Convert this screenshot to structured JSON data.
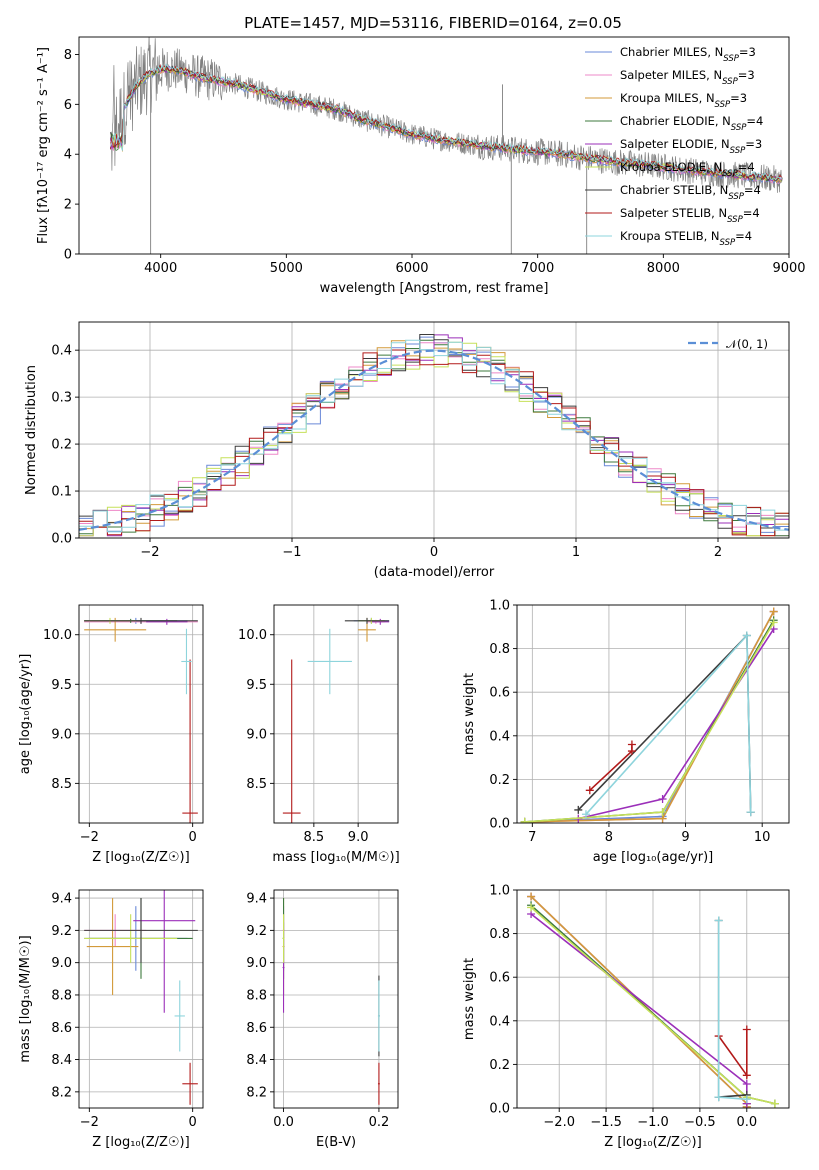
{
  "colors": {
    "Chabrier MILES": "#6a89d8",
    "Salpeter MILES": "#ee88c8",
    "Kroupa MILES": "#d39a3a",
    "Chabrier ELODIE": "#3e7a3e",
    "Salpeter ELODIE": "#9b2fb9",
    "Kroupa ELODIE": "#c6e05a",
    "Chabrier STELIB": "#3c3c3c",
    "Salpeter STELIB": "#b21a1a",
    "Kroupa STELIB": "#8ed4dc"
  },
  "chart_data": [
    {
      "id": "spectrum",
      "type": "line",
      "title": "PLATE=1457, MJD=53116, FIBERID=0164, z=0.05",
      "xlabel": "wavelength [Angstrom, rest frame]",
      "ylabel": "Flux [fλ10⁻¹⁷ erg cm⁻² s⁻¹ A⁻¹]",
      "xlim": [
        3350,
        9000
      ],
      "ylim": [
        0,
        8.7
      ],
      "xticks": [
        4000,
        5000,
        6000,
        7000,
        8000,
        9000
      ],
      "yticks": [
        0,
        2,
        4,
        6,
        8
      ],
      "grid": false,
      "legend_position": "top-right",
      "legend": [
        {
          "name": "Chabrier MILES",
          "nssp": "3"
        },
        {
          "name": "Salpeter MILES",
          "nssp": "3"
        },
        {
          "name": "Kroupa MILES",
          "nssp": "3"
        },
        {
          "name": "Chabrier ELODIE",
          "nssp": "4"
        },
        {
          "name": "Salpeter ELODIE",
          "nssp": "3"
        },
        {
          "name": "Kroupa ELODIE",
          "nssp": "4"
        },
        {
          "name": "Chabrier STELIB",
          "nssp": "4"
        },
        {
          "name": "Salpeter STELIB",
          "nssp": "4"
        },
        {
          "name": "Kroupa STELIB",
          "nssp": "4"
        }
      ],
      "data_continuum": {
        "x": [
          3600,
          3700,
          3800,
          3900,
          4000,
          4100,
          4200,
          4300,
          4400,
          4600,
          4800,
          5000,
          5200,
          5400,
          5600,
          5800,
          6000,
          6200,
          6400,
          6600,
          6800,
          7000,
          7200,
          7400,
          7600,
          7800,
          8000,
          8200,
          8400,
          8600,
          8800,
          9000
        ],
        "y": [
          4.2,
          5.8,
          6.7,
          7.2,
          7.4,
          7.4,
          7.3,
          7.1,
          7.0,
          6.8,
          6.5,
          6.2,
          6.0,
          5.8,
          5.4,
          5.1,
          4.8,
          4.6,
          4.45,
          4.3,
          4.2,
          4.1,
          4.0,
          3.85,
          3.7,
          3.6,
          3.5,
          3.35,
          3.25,
          3.15,
          3.05,
          2.95
        ]
      }
    },
    {
      "id": "residual-histogram",
      "type": "line",
      "xlabel": "(data-model)/error",
      "ylabel": "Normed distribution",
      "xlim": [
        -2.5,
        2.5
      ],
      "ylim": [
        0,
        0.46
      ],
      "xticks": [
        -2,
        -1,
        0,
        1,
        2
      ],
      "yticks": [
        0.0,
        0.1,
        0.2,
        0.3,
        0.4
      ],
      "grid": true,
      "legend_position": "top-right",
      "reference_curve": "𝒩(0, 1)",
      "bin_width": 0.1
    },
    {
      "id": "age-vs-Z",
      "type": "scatter",
      "xlabel": "Z [log₁₀(Z/Z☉)]",
      "ylabel": "age  [log₁₀(age/yr)]",
      "xlim": [
        -2.2,
        0.2
      ],
      "ylim": [
        8.1,
        10.3
      ],
      "xticks": [
        -2,
        0
      ],
      "yticks": [
        8.5,
        9.0,
        9.5,
        10.0
      ],
      "grid": true,
      "errorbars": [
        {
          "series": "Chabrier MILES",
          "x": -1.1,
          "y": 10.14,
          "xerr": 1.0,
          "yerr": 0.03
        },
        {
          "series": "Salpeter MILES",
          "x": -1.0,
          "y": 10.13,
          "xerr": 1.1,
          "yerr": 0.02
        },
        {
          "series": "Kroupa MILES",
          "x": -1.5,
          "y": 10.05,
          "xerr": 0.6,
          "yerr": 0.12
        },
        {
          "series": "Chabrier ELODIE",
          "x": -1.2,
          "y": 10.14,
          "xerr": 0.9,
          "yerr": 0.02
        },
        {
          "series": "Salpeter ELODIE",
          "x": -0.5,
          "y": 10.13,
          "xerr": 0.4,
          "yerr": 0.03
        },
        {
          "series": "Kroupa ELODIE",
          "x": -1.6,
          "y": 10.14,
          "xerr": 0.5,
          "yerr": 0.03
        },
        {
          "series": "Chabrier STELIB",
          "x": -1.0,
          "y": 10.14,
          "xerr": 1.1,
          "yerr": 0.03
        },
        {
          "series": "Salpeter STELIB",
          "x": -0.05,
          "y": 8.2,
          "xerr": 0.15,
          "yerr": 1.55
        },
        {
          "series": "Kroupa STELIB",
          "x": -0.12,
          "y": 9.73,
          "xerr": 0.1,
          "yerr": 0.33
        }
      ]
    },
    {
      "id": "age-vs-mass",
      "type": "scatter",
      "xlabel": "mass [log₁₀(M/M☉)]",
      "ylabel": "",
      "xlim": [
        8.05,
        9.45
      ],
      "ylim": [
        8.1,
        10.3
      ],
      "xticks": [
        8.5,
        9.0
      ],
      "yticks": [
        8.5,
        9.0,
        9.5,
        10.0
      ],
      "grid": true,
      "errorbars": [
        {
          "series": "Chabrier MILES",
          "x": 9.15,
          "y": 10.14,
          "xerr": 0.2,
          "yerr": 0.03
        },
        {
          "series": "Salpeter MILES",
          "x": 9.2,
          "y": 10.13,
          "xerr": 0.1,
          "yerr": 0.02
        },
        {
          "series": "Kroupa MILES",
          "x": 9.1,
          "y": 10.05,
          "xerr": 0.1,
          "yerr": 0.12
        },
        {
          "series": "Chabrier ELODIE",
          "x": 9.15,
          "y": 10.14,
          "xerr": 0.15,
          "yerr": 0.02
        },
        {
          "series": "Salpeter ELODIE",
          "x": 9.25,
          "y": 10.13,
          "xerr": 0.1,
          "yerr": 0.03
        },
        {
          "series": "Kroupa ELODIE",
          "x": 9.15,
          "y": 10.14,
          "xerr": 0.15,
          "yerr": 0.03
        },
        {
          "series": "Chabrier STELIB",
          "x": 9.1,
          "y": 10.14,
          "xerr": 0.25,
          "yerr": 0.03
        },
        {
          "series": "Salpeter STELIB",
          "x": 8.25,
          "y": 8.2,
          "xerr": 0.1,
          "yerr": 1.55
        },
        {
          "series": "Kroupa STELIB",
          "x": 8.68,
          "y": 9.73,
          "xerr": 0.25,
          "yerr": 0.33
        }
      ]
    },
    {
      "id": "weight-vs-age",
      "type": "line",
      "xlabel": "age  [log₁₀(age/yr)]",
      "ylabel": "mass weight",
      "xlim": [
        6.8,
        10.35
      ],
      "ylim": [
        0,
        1.0
      ],
      "xticks": [
        7,
        8,
        9,
        10
      ],
      "yticks": [
        0.0,
        0.2,
        0.4,
        0.6,
        0.8,
        1.0
      ],
      "grid": true,
      "series": [
        {
          "name": "Chabrier MILES",
          "x": [
            6.9,
            8.7,
            10.15
          ],
          "y": [
            0.005,
            0.03,
            0.97
          ]
        },
        {
          "name": "Salpeter MILES",
          "x": [
            6.9,
            8.7,
            10.15
          ],
          "y": [
            0.005,
            0.02,
            0.97
          ]
        },
        {
          "name": "Kroupa MILES",
          "x": [
            6.9,
            8.7,
            10.15
          ],
          "y": [
            0.005,
            0.02,
            0.97
          ]
        },
        {
          "name": "Chabrier ELODIE",
          "x": [
            6.9,
            8.7,
            10.15
          ],
          "y": [
            0.005,
            0.05,
            0.93
          ]
        },
        {
          "name": "Salpeter ELODIE",
          "x": [
            7.6,
            8.7,
            10.15
          ],
          "y": [
            0.02,
            0.11,
            0.89
          ]
        },
        {
          "name": "Kroupa ELODIE",
          "x": [
            6.9,
            8.7,
            10.15
          ],
          "y": [
            0.005,
            0.05,
            0.92
          ]
        },
        {
          "name": "Chabrier STELIB",
          "x": [
            7.6,
            9.8,
            9.85
          ],
          "y": [
            0.06,
            0.86,
            0.05
          ]
        },
        {
          "name": "Salpeter STELIB",
          "x": [
            7.75,
            8.3,
            8.3
          ],
          "y": [
            0.15,
            0.33,
            0.36
          ]
        },
        {
          "name": "Kroupa STELIB",
          "x": [
            7.7,
            9.8,
            9.85
          ],
          "y": [
            0.04,
            0.86,
            0.05
          ]
        }
      ]
    },
    {
      "id": "mass-vs-Z",
      "type": "scatter",
      "xlabel": "Z [log₁₀(Z/Z☉)]",
      "ylabel": "mass [log₁₀(M/M☉)]",
      "xlim": [
        -2.2,
        0.2
      ],
      "ylim": [
        8.1,
        9.45
      ],
      "xticks": [
        -2,
        0
      ],
      "yticks": [
        8.2,
        8.4,
        8.6,
        8.8,
        9.0,
        9.2,
        9.4
      ],
      "grid": true,
      "errorbars": [
        {
          "series": "Chabrier MILES",
          "x": -1.1,
          "y": 9.15,
          "xerr": 1.0,
          "yerr": 0.2
        },
        {
          "series": "Salpeter MILES",
          "x": -1.5,
          "y": 9.2,
          "xerr": 0.6,
          "yerr": 0.1
        },
        {
          "series": "Kroupa MILES",
          "x": -1.55,
          "y": 9.1,
          "xerr": 0.5,
          "yerr": 0.3
        },
        {
          "series": "Chabrier ELODIE",
          "x": -1.0,
          "y": 9.15,
          "xerr": 1.0,
          "yerr": 0.25
        },
        {
          "series": "Salpeter ELODIE",
          "x": -0.55,
          "y": 9.26,
          "xerr": 0.6,
          "yerr": 0.57
        },
        {
          "series": "Kroupa ELODIE",
          "x": -1.2,
          "y": 9.15,
          "xerr": 0.9,
          "yerr": 0.15
        },
        {
          "series": "Chabrier STELIB",
          "x": -1.0,
          "y": 9.2,
          "xerr": 1.1,
          "yerr": 0.2
        },
        {
          "series": "Salpeter STELIB",
          "x": -0.05,
          "y": 8.25,
          "xerr": 0.15,
          "yerr": 0.13
        },
        {
          "series": "Kroupa STELIB",
          "x": -0.25,
          "y": 8.67,
          "xerr": 0.1,
          "yerr": 0.22
        }
      ]
    },
    {
      "id": "mass-vs-ebv",
      "type": "scatter",
      "xlabel": "E(B-V)",
      "ylabel": "",
      "xlim": [
        -0.02,
        0.24
      ],
      "ylim": [
        8.1,
        9.45
      ],
      "xticks": [
        0.0,
        0.2
      ],
      "yticks": [
        8.2,
        8.4,
        8.6,
        8.8,
        9.0,
        9.2,
        9.4
      ],
      "grid": true,
      "errorbars": [
        {
          "series": "Chabrier MILES",
          "x": 0.0,
          "y": 9.15,
          "xerr": 0.002,
          "yerr": 0.2
        },
        {
          "series": "Salpeter MILES",
          "x": 0.0,
          "y": 9.2,
          "xerr": 0.002,
          "yerr": 0.1
        },
        {
          "series": "Kroupa MILES",
          "x": 0.0,
          "y": 9.1,
          "xerr": 0.002,
          "yerr": 0.3
        },
        {
          "series": "Chabrier ELODIE",
          "x": 0.0,
          "y": 9.15,
          "xerr": 0.002,
          "yerr": 0.25
        },
        {
          "series": "Salpeter ELODIE",
          "x": 0.0,
          "y": 8.97,
          "xerr": 0.002,
          "yerr": 0.28
        },
        {
          "series": "Kroupa ELODIE",
          "x": 0.0,
          "y": 9.15,
          "xerr": 0.002,
          "yerr": 0.15
        },
        {
          "series": "Chabrier STELIB",
          "x": 0.2,
          "y": 8.67,
          "xerr": 0.002,
          "yerr": 0.25
        },
        {
          "series": "Salpeter STELIB",
          "x": 0.2,
          "y": 8.25,
          "xerr": 0.002,
          "yerr": 0.13
        },
        {
          "series": "Kroupa STELIB",
          "x": 0.2,
          "y": 8.67,
          "xerr": 0.002,
          "yerr": 0.22
        }
      ]
    },
    {
      "id": "weight-vs-Z",
      "type": "line",
      "xlabel": "Z [log₁₀(Z/Z☉)]",
      "ylabel": "mass weight",
      "xlim": [
        -2.45,
        0.45
      ],
      "ylim": [
        0,
        1.0
      ],
      "xticks": [
        -2.0,
        -1.5,
        -1.0,
        -0.5,
        0.0
      ],
      "yticks": [
        0.0,
        0.2,
        0.4,
        0.6,
        0.8,
        1.0
      ],
      "grid": true,
      "series": [
        {
          "name": "Chabrier MILES",
          "x": [
            -2.3,
            0.0,
            0.0
          ],
          "y": [
            0.97,
            0.02,
            0.005
          ]
        },
        {
          "name": "Salpeter MILES",
          "x": [
            -2.3,
            0.0,
            0.0
          ],
          "y": [
            0.97,
            0.02,
            0.005
          ]
        },
        {
          "name": "Kroupa MILES",
          "x": [
            -2.3,
            0.0,
            0.0
          ],
          "y": [
            0.97,
            0.02,
            0.005
          ]
        },
        {
          "name": "Chabrier ELODIE",
          "x": [
            -2.3,
            0.0,
            0.3
          ],
          "y": [
            0.93,
            0.05,
            0.02
          ]
        },
        {
          "name": "Salpeter ELODIE",
          "x": [
            -2.3,
            0.0,
            0.0
          ],
          "y": [
            0.89,
            0.11,
            0.02
          ]
        },
        {
          "name": "Kroupa ELODIE",
          "x": [
            -2.3,
            0.0,
            0.3
          ],
          "y": [
            0.92,
            0.05,
            0.02
          ]
        },
        {
          "name": "Chabrier STELIB",
          "x": [
            -0.3,
            -0.3,
            0.0
          ],
          "y": [
            0.86,
            0.05,
            0.06
          ]
        },
        {
          "name": "Salpeter STELIB",
          "x": [
            -0.3,
            0.0,
            0.0
          ],
          "y": [
            0.33,
            0.15,
            0.36
          ]
        },
        {
          "name": "Kroupa STELIB",
          "x": [
            -0.3,
            -0.3,
            0.0
          ],
          "y": [
            0.86,
            0.05,
            0.04
          ]
        }
      ]
    }
  ]
}
